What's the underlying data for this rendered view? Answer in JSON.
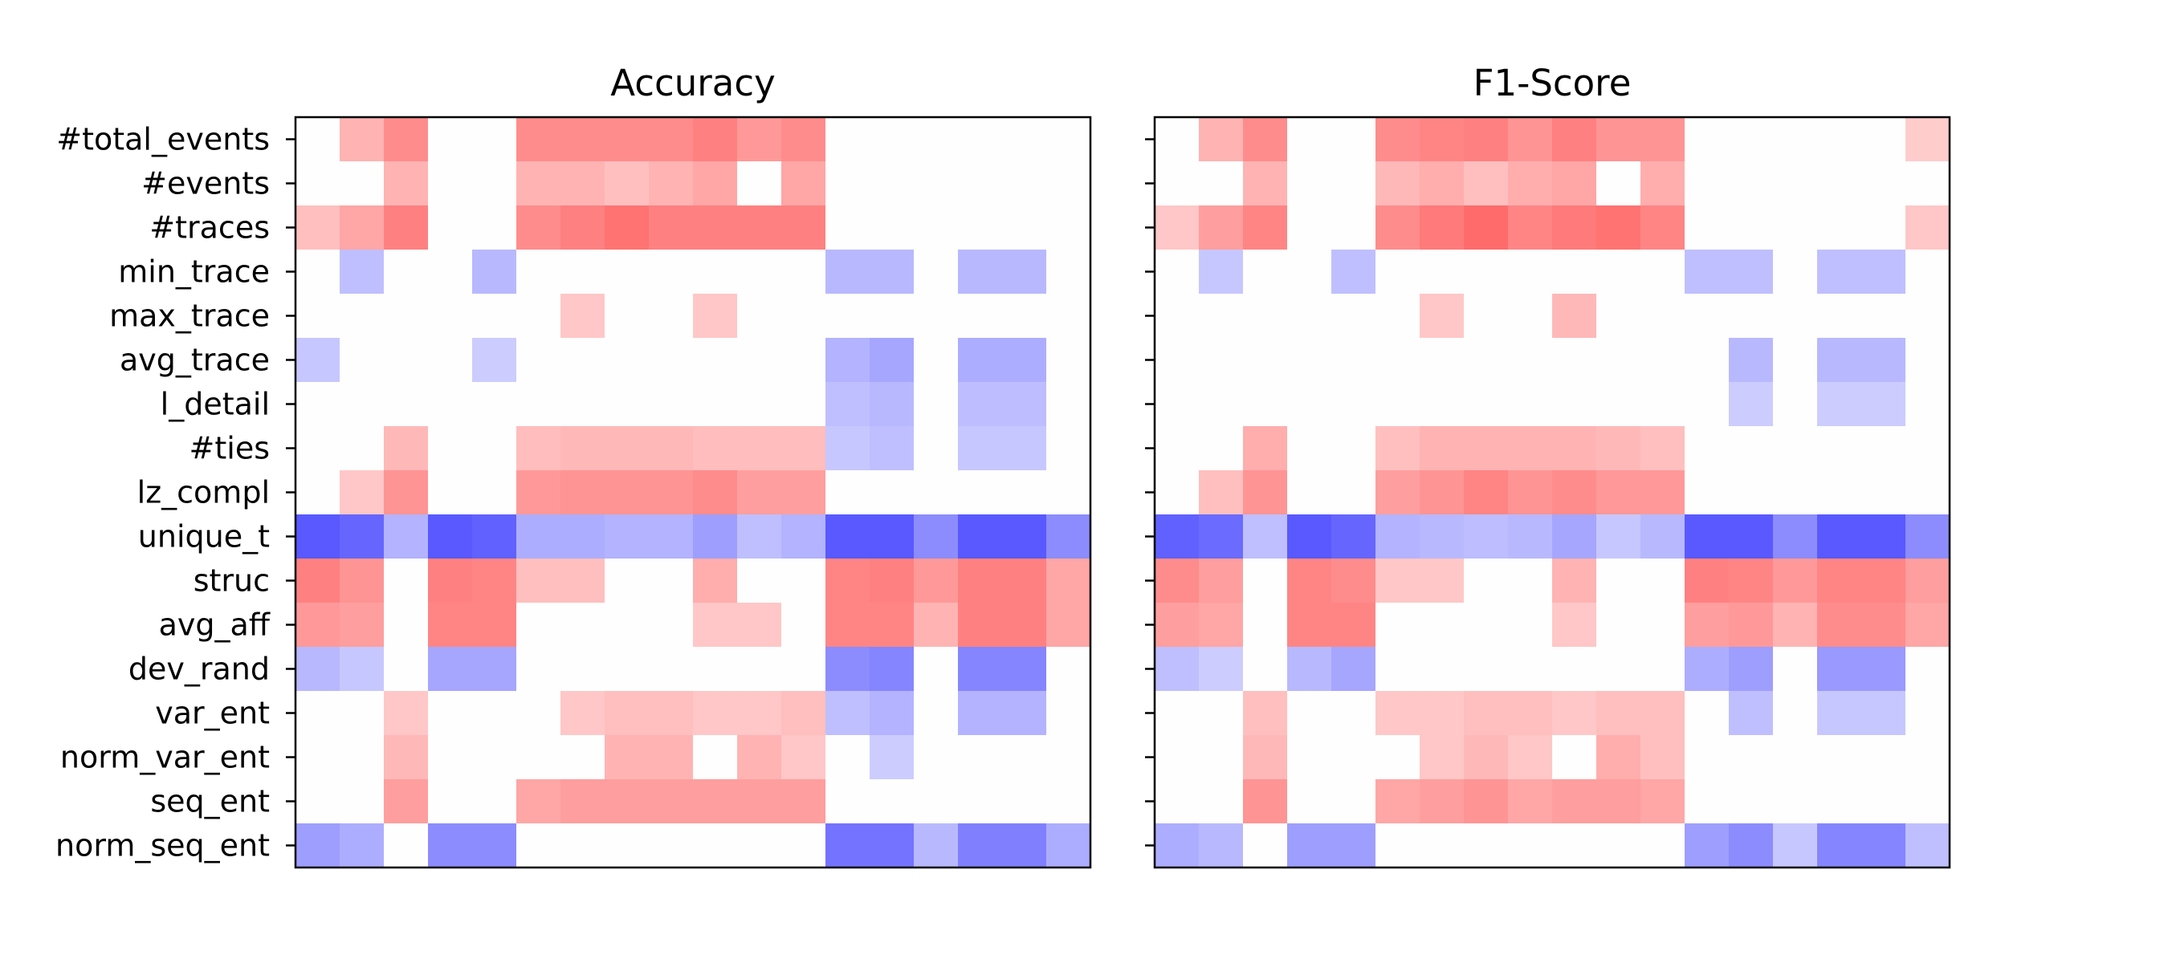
{
  "chart_data": [
    {
      "type": "heatmap",
      "title": "Accuracy",
      "rows": [
        "#total_events",
        "#events",
        "#traces",
        "min_trace",
        "max_trace",
        "avg_trace",
        "l_detail",
        "#ties",
        "lz_compl",
        "unique_t",
        "struc",
        "avg_aff",
        "dev_rand",
        "var_ent",
        "norm_var_ent",
        "seq_ent",
        "norm_seq_ent"
      ],
      "n_columns": 18,
      "colormap": "bwr",
      "vmin": -1,
      "vmax": 1,
      "values": [
        [
          0,
          0.3,
          0.45,
          0,
          0,
          0.45,
          0.45,
          0.45,
          0.45,
          0.5,
          0.4,
          0.45,
          0,
          0,
          0,
          0,
          0,
          0
        ],
        [
          0,
          0,
          0.3,
          0,
          0,
          0.3,
          0.3,
          0.25,
          0.3,
          0.35,
          0,
          0.35,
          0,
          0,
          0,
          0,
          0,
          0
        ],
        [
          0.25,
          0.35,
          0.5,
          0,
          0,
          0.45,
          0.5,
          0.55,
          0.5,
          0.5,
          0.5,
          0.5,
          0,
          0,
          0,
          0,
          0,
          0
        ],
        [
          0,
          -0.25,
          0,
          0,
          -0.28,
          0,
          0,
          0,
          0,
          0,
          0,
          0,
          -0.28,
          -0.28,
          0,
          -0.28,
          -0.28,
          0
        ],
        [
          0,
          0,
          0,
          0,
          0,
          0,
          0.22,
          0,
          0,
          0.22,
          0,
          0,
          0,
          0,
          0,
          0,
          0,
          0
        ],
        [
          -0.22,
          0,
          0,
          0,
          -0.2,
          0,
          0,
          0,
          0,
          0,
          0,
          0,
          -0.3,
          -0.35,
          0,
          -0.32,
          -0.32,
          0
        ],
        [
          0,
          0,
          0,
          0,
          0,
          0,
          0,
          0,
          0,
          0,
          0,
          0,
          -0.25,
          -0.28,
          0,
          -0.26,
          -0.26,
          0
        ],
        [
          0,
          0,
          0.28,
          0,
          0,
          0.26,
          0.28,
          0.28,
          0.28,
          0.26,
          0.26,
          0.26,
          -0.22,
          -0.25,
          0,
          -0.22,
          -0.22,
          0
        ],
        [
          0,
          0.22,
          0.42,
          0,
          0,
          0.4,
          0.42,
          0.42,
          0.42,
          0.45,
          0.38,
          0.38,
          0,
          0,
          0,
          0,
          0,
          0
        ],
        [
          -0.65,
          -0.6,
          -0.3,
          -0.65,
          -0.62,
          -0.32,
          -0.32,
          -0.3,
          -0.3,
          -0.38,
          -0.25,
          -0.3,
          -0.65,
          -0.65,
          -0.45,
          -0.65,
          -0.65,
          -0.45
        ],
        [
          0.5,
          0.42,
          0,
          0.5,
          0.48,
          0.25,
          0.25,
          0,
          0,
          0.32,
          0,
          0,
          0.48,
          0.5,
          0.4,
          0.5,
          0.5,
          0.35
        ],
        [
          0.4,
          0.38,
          0,
          0.48,
          0.48,
          0,
          0,
          0,
          0,
          0.22,
          0.22,
          0,
          0.48,
          0.48,
          0.3,
          0.5,
          0.5,
          0.35
        ],
        [
          -0.28,
          -0.22,
          0,
          -0.35,
          -0.35,
          0,
          0,
          0,
          0,
          0,
          0,
          0,
          -0.45,
          -0.48,
          0,
          -0.48,
          -0.48,
          0
        ],
        [
          0,
          0,
          0.22,
          0,
          0,
          0,
          0.22,
          0.25,
          0.25,
          0.22,
          0.22,
          0.25,
          -0.25,
          -0.3,
          0,
          -0.3,
          -0.3,
          0
        ],
        [
          0,
          0,
          0.28,
          0,
          0,
          0,
          0,
          0.3,
          0.3,
          0,
          0.3,
          0.22,
          0,
          -0.2,
          0,
          0,
          0,
          0
        ],
        [
          0,
          0,
          0.38,
          0,
          0,
          0.35,
          0.38,
          0.38,
          0.38,
          0.38,
          0.38,
          0.38,
          0,
          0,
          0,
          0,
          0,
          0
        ],
        [
          -0.38,
          -0.32,
          0,
          -0.45,
          -0.45,
          0,
          0,
          0,
          0,
          0,
          0,
          0,
          -0.55,
          -0.55,
          -0.28,
          -0.5,
          -0.5,
          -0.32
        ]
      ]
    },
    {
      "type": "heatmap",
      "title": "F1-Score",
      "rows": [
        "#total_events",
        "#events",
        "#traces",
        "min_trace",
        "max_trace",
        "avg_trace",
        "l_detail",
        "#ties",
        "lz_compl",
        "unique_t",
        "struc",
        "avg_aff",
        "dev_rand",
        "var_ent",
        "norm_var_ent",
        "seq_ent",
        "norm_seq_ent"
      ],
      "n_columns": 18,
      "colormap": "bwr",
      "vmin": -1,
      "vmax": 1,
      "values": [
        [
          0,
          0.3,
          0.45,
          0,
          0,
          0.45,
          0.48,
          0.5,
          0.42,
          0.5,
          0.42,
          0.42,
          0,
          0,
          0,
          0,
          0,
          0.2
        ],
        [
          0,
          0,
          0.3,
          0,
          0,
          0.28,
          0.32,
          0.25,
          0.32,
          0.35,
          0,
          0.32,
          0,
          0,
          0,
          0,
          0,
          0
        ],
        [
          0.22,
          0.38,
          0.48,
          0,
          0,
          0.45,
          0.52,
          0.58,
          0.48,
          0.52,
          0.55,
          0.48,
          0,
          0,
          0,
          0,
          0,
          0.22
        ],
        [
          0,
          -0.22,
          0,
          0,
          -0.25,
          0,
          0,
          0,
          0,
          0,
          0,
          0,
          -0.25,
          -0.25,
          0,
          -0.25,
          -0.25,
          0
        ],
        [
          0,
          0,
          0,
          0,
          0,
          0,
          0.22,
          0,
          0,
          0.28,
          0,
          0,
          0,
          0,
          0,
          0,
          0,
          0
        ],
        [
          0,
          0,
          0,
          0,
          0,
          0,
          0,
          0,
          0,
          0,
          0,
          0,
          0,
          -0.28,
          0,
          -0.28,
          -0.28,
          0
        ],
        [
          0,
          0,
          0,
          0,
          0,
          0,
          0,
          0,
          0,
          0,
          0,
          0,
          0,
          -0.2,
          0,
          -0.2,
          -0.2,
          0
        ],
        [
          0,
          0,
          0.32,
          0,
          0,
          0.25,
          0.3,
          0.3,
          0.3,
          0.3,
          0.28,
          0.25,
          0,
          0,
          0,
          0,
          0,
          0
        ],
        [
          0,
          0.25,
          0.42,
          0,
          0,
          0.38,
          0.42,
          0.48,
          0.42,
          0.45,
          0.4,
          0.4,
          0,
          0,
          0,
          0,
          0,
          0
        ],
        [
          -0.62,
          -0.58,
          -0.25,
          -0.65,
          -0.6,
          -0.3,
          -0.28,
          -0.26,
          -0.28,
          -0.35,
          -0.22,
          -0.28,
          -0.65,
          -0.65,
          -0.45,
          -0.65,
          -0.65,
          -0.45
        ],
        [
          0.45,
          0.38,
          0,
          0.48,
          0.45,
          0.22,
          0.22,
          0,
          0,
          0.3,
          0,
          0,
          0.5,
          0.48,
          0.4,
          0.48,
          0.48,
          0.38
        ],
        [
          0.38,
          0.35,
          0,
          0.48,
          0.48,
          0,
          0,
          0,
          0,
          0.22,
          0,
          0,
          0.38,
          0.4,
          0.3,
          0.45,
          0.45,
          0.35
        ],
        [
          -0.25,
          -0.2,
          0,
          -0.28,
          -0.35,
          0,
          0,
          0,
          0,
          0,
          0,
          0,
          -0.32,
          -0.38,
          0,
          -0.4,
          -0.4,
          0
        ],
        [
          0,
          0,
          0.25,
          0,
          0,
          0.22,
          0.22,
          0.25,
          0.25,
          0.22,
          0.25,
          0.25,
          0,
          -0.25,
          0,
          -0.22,
          -0.22,
          0
        ],
        [
          0,
          0,
          0.28,
          0,
          0,
          0,
          0.22,
          0.28,
          0.22,
          0,
          0.32,
          0.25,
          0,
          0,
          0,
          0,
          0,
          0
        ],
        [
          0,
          0,
          0.42,
          0,
          0,
          0.35,
          0.38,
          0.42,
          0.35,
          0.38,
          0.38,
          0.35,
          0,
          0,
          0,
          0,
          0,
          0
        ],
        [
          -0.32,
          -0.28,
          0,
          -0.38,
          -0.38,
          0,
          0,
          0,
          0,
          0,
          0,
          0,
          -0.38,
          -0.45,
          -0.22,
          -0.48,
          -0.48,
          -0.25
        ]
      ]
    }
  ]
}
